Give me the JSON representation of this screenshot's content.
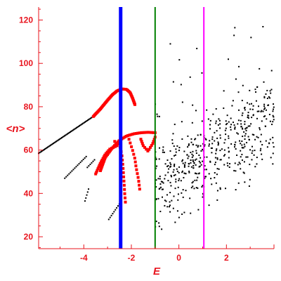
{
  "chart_data": {
    "type": "scatter",
    "title": "",
    "xlabel": "E",
    "ylabel": "<n>",
    "xlim": [
      -5.9,
      4.0
    ],
    "ylim": [
      14.5,
      126
    ],
    "x_ticks": [
      -4,
      -2,
      0,
      2
    ],
    "x_tick_labels": [
      "-4",
      "-2",
      "0",
      "2"
    ],
    "y_ticks": [
      20,
      40,
      60,
      80,
      100,
      120
    ],
    "y_tick_labels": [
      "20",
      "40",
      "60",
      "80",
      "100",
      "120"
    ],
    "grid": false,
    "legend": "none",
    "axis_color": "#e8141e",
    "vertical_lines": [
      {
        "x": -2.45,
        "color": "#0000ff",
        "width": "thick"
      },
      {
        "x": -1.0,
        "color": "#008000",
        "width": "thin"
      },
      {
        "x": 1.05,
        "color": "#ff00ff",
        "width": "thin"
      }
    ],
    "series": [
      {
        "color": "#000000",
        "marker": "dot",
        "segments": [
          {
            "x_start": -5.9,
            "y_start": 58.5,
            "x_end": -3.6,
            "y_end": 75.5,
            "n": 60
          },
          {
            "x_start": -4.8,
            "y_start": 47.0,
            "x_end": -3.9,
            "y_end": 57.0,
            "n": 16
          },
          {
            "x_start": -3.85,
            "y_start": 52.0,
            "x_end": -3.55,
            "y_end": 55.5,
            "n": 6
          },
          {
            "x_start": -3.95,
            "y_start": 36.5,
            "x_end": -3.8,
            "y_end": 42.0,
            "n": 5
          },
          {
            "x_start": -2.95,
            "y_start": 28.0,
            "x_end": -2.45,
            "y_end": 36.0,
            "n": 10
          }
        ],
        "cloud": {
          "x_min": -1.0,
          "x_max": 4.0,
          "n": 520,
          "slope": 6.3,
          "intercept": 50.5,
          "spread": 10.0
        }
      },
      {
        "color": "#ff0000",
        "marker": "square",
        "arcs": [
          {
            "points": [
              [
                -3.6,
                75.5
              ],
              [
                -3.3,
                79.0
              ],
              [
                -3.0,
                83.0
              ],
              [
                -2.8,
                85.5
              ],
              [
                -2.6,
                87.3
              ],
              [
                -2.4,
                88.2
              ],
              [
                -2.2,
                88.0
              ],
              [
                -2.05,
                86.5
              ],
              [
                -1.95,
                84.0
              ],
              [
                -1.85,
                81.0
              ]
            ],
            "n": 55
          },
          {
            "points": [
              [
                -3.3,
                50.5
              ],
              [
                -3.1,
                56.5
              ],
              [
                -2.8,
                61.0
              ],
              [
                -2.5,
                64.5
              ],
              [
                -2.2,
                66.5
              ],
              [
                -1.9,
                67.5
              ],
              [
                -1.6,
                68.0
              ],
              [
                -1.3,
                68.2
              ],
              [
                -1.0,
                68.0
              ]
            ],
            "n": 45
          },
          {
            "points": [
              [
                -3.5,
                49.0
              ],
              [
                -3.3,
                54.0
              ],
              [
                -3.1,
                58.0
              ],
              [
                -2.9,
                60.5
              ],
              [
                -2.6,
                62.0
              ]
            ],
            "n": 20
          },
          {
            "points": [
              [
                -2.7,
                64.0
              ],
              [
                -2.5,
                62.5
              ],
              [
                -2.4,
                58.0
              ],
              [
                -2.35,
                52.0
              ],
              [
                -2.3,
                44.0
              ],
              [
                -2.28,
                40.0
              ],
              [
                -2.25,
                36.0
              ]
            ],
            "n": 16
          },
          {
            "points": [
              [
                -2.1,
                65.0
              ],
              [
                -1.95,
                60.0
              ],
              [
                -1.85,
                56.0
              ],
              [
                -1.8,
                52.0
              ],
              [
                -1.7,
                46.5
              ],
              [
                -1.65,
                42.0
              ]
            ],
            "n": 14
          },
          {
            "points": [
              [
                -1.6,
                65.0
              ],
              [
                -1.5,
                62.0
              ],
              [
                -1.3,
                59.5
              ],
              [
                -1.1,
                63.0
              ],
              [
                -1.0,
                66.0
              ]
            ],
            "n": 14
          }
        ]
      }
    ]
  }
}
